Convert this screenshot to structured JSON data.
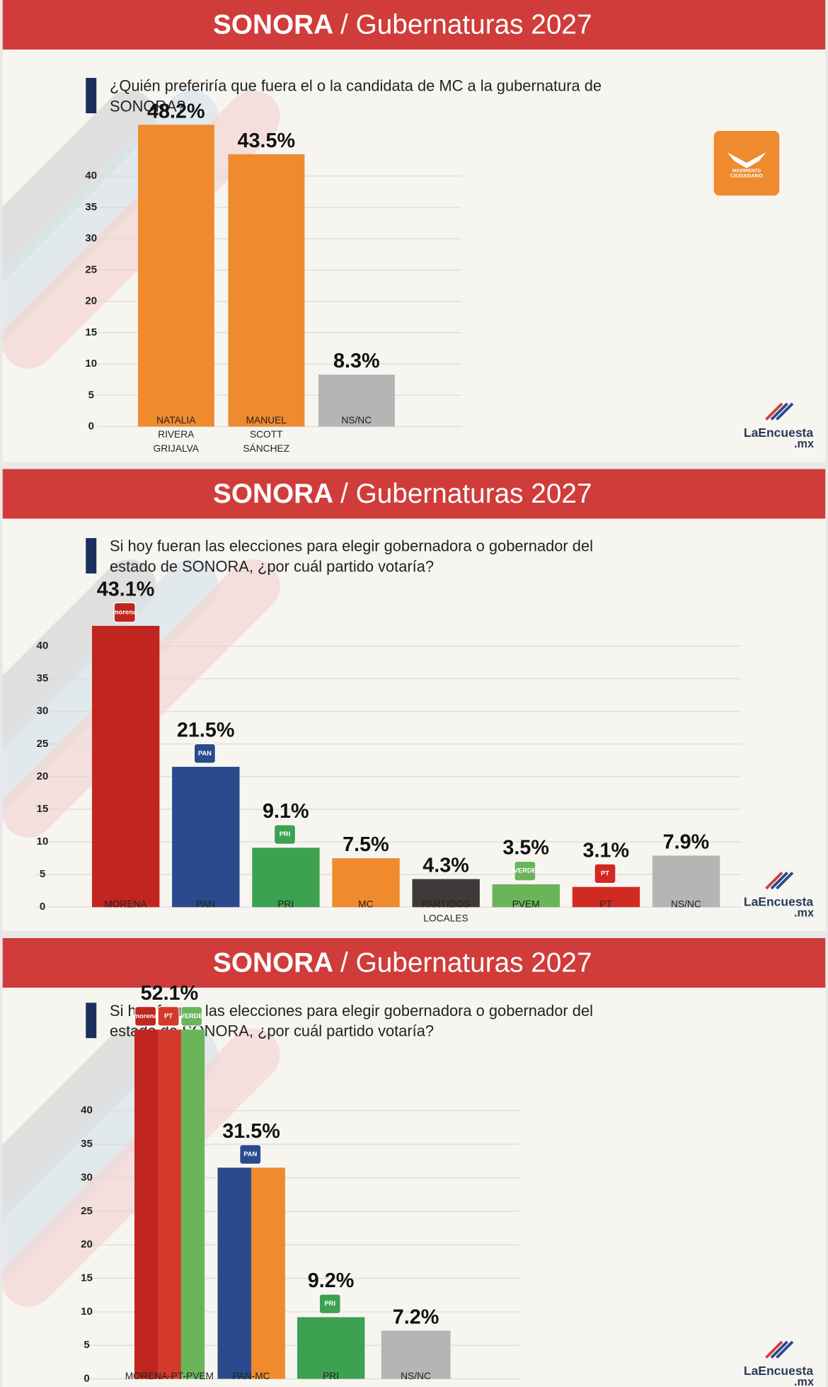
{
  "panels": [
    {
      "header": [
        "SONORA",
        "/ Gubernaturas 2027"
      ],
      "brand": [
        "LaEncuesta",
        ".mx"
      ]
    },
    {
      "header": [
        "SONORA",
        "/ Gubernaturas 2027"
      ],
      "brand": [
        "LaEncuesta",
        ".mx"
      ]
    },
    {
      "header": [
        "SONORA",
        "/ Gubernaturas 2027"
      ],
      "brand": [
        "LaEncuesta",
        ".mx"
      ]
    }
  ],
  "mc_logo": [
    "MOVIMIENTO",
    "CIUDADANO"
  ],
  "chart_data": [
    {
      "type": "bar",
      "title": "¿Quién preferiría que fuera el o la candidata de MC a la gubernatura de SONORA?",
      "categories": [
        "NATALIA RIVERA GRIJALVA",
        "MANUEL SCOTT SÁNCHEZ",
        "NS/NC"
      ],
      "values": [
        48.2,
        43.5,
        8.3
      ],
      "value_labels": [
        "48.2%",
        "43.5%",
        "8.3%"
      ],
      "colors": [
        [
          "#ef8a2e"
        ],
        [
          "#ef8a2e"
        ],
        [
          "#b5b5b5"
        ]
      ],
      "logos": [
        [],
        [],
        []
      ],
      "ylim": [
        0,
        40
      ],
      "yticks": [
        0,
        5,
        10,
        15,
        20,
        25,
        30,
        35,
        40
      ],
      "grid": true
    },
    {
      "type": "bar",
      "title": "Si hoy fueran las elecciones para elegir gobernadora o gobernador del estado de SONORA, ¿por cuál partido votaría?",
      "categories": [
        "MORENA",
        "PAN",
        "PRI",
        "MC",
        "PARTIDOS LOCALES",
        "PVEM",
        "PT",
        "NS/NC"
      ],
      "values": [
        43.1,
        21.5,
        9.1,
        7.5,
        4.3,
        3.5,
        3.1,
        7.9
      ],
      "value_labels": [
        "43.1%",
        "21.5%",
        "9.1%",
        "7.5%",
        "4.3%",
        "3.5%",
        "3.1%",
        "7.9%"
      ],
      "colors": [
        [
          "#c0261f"
        ],
        [
          "#2a4a8d"
        ],
        [
          "#3da152"
        ],
        [
          "#ef8a2e"
        ],
        [
          "#3f3a3a"
        ],
        [
          "#6ab55a"
        ],
        [
          "#d12a22"
        ],
        [
          "#b5b5b5"
        ]
      ],
      "logos": [
        [
          "morena"
        ],
        [
          "PAN"
        ],
        [
          "PRI"
        ],
        [],
        [],
        [
          "VERDE"
        ],
        [
          "PT"
        ],
        []
      ],
      "ylim": [
        0,
        40
      ],
      "yticks": [
        0,
        5,
        10,
        15,
        20,
        25,
        30,
        35,
        40
      ],
      "grid": true
    },
    {
      "type": "bar",
      "title": "Si hoy fueran las elecciones para elegir gobernadora o gobernador del estado de SONORA, ¿por cuál partido votaría?",
      "categories": [
        "MORENA-PT-PVEM",
        "PAN-MC",
        "PRI",
        "NS/NC"
      ],
      "values": [
        52.1,
        31.5,
        9.2,
        7.2
      ],
      "value_labels": [
        "52.1%",
        "31.5%",
        "9.2%",
        "7.2%"
      ],
      "colors": [
        [
          "#c0261f",
          "#d33a2c",
          "#6ab55a"
        ],
        [
          "#2a4a8d",
          "#ef8a2e"
        ],
        [
          "#3da152"
        ],
        [
          "#b5b5b5"
        ]
      ],
      "logos": [
        [
          "morena",
          "PT",
          "VERDE"
        ],
        [
          "PAN"
        ],
        [
          "PRI"
        ],
        []
      ],
      "ylim": [
        0,
        40
      ],
      "yticks": [
        0,
        5,
        10,
        15,
        20,
        25,
        30,
        35,
        40
      ],
      "grid": true
    }
  ]
}
